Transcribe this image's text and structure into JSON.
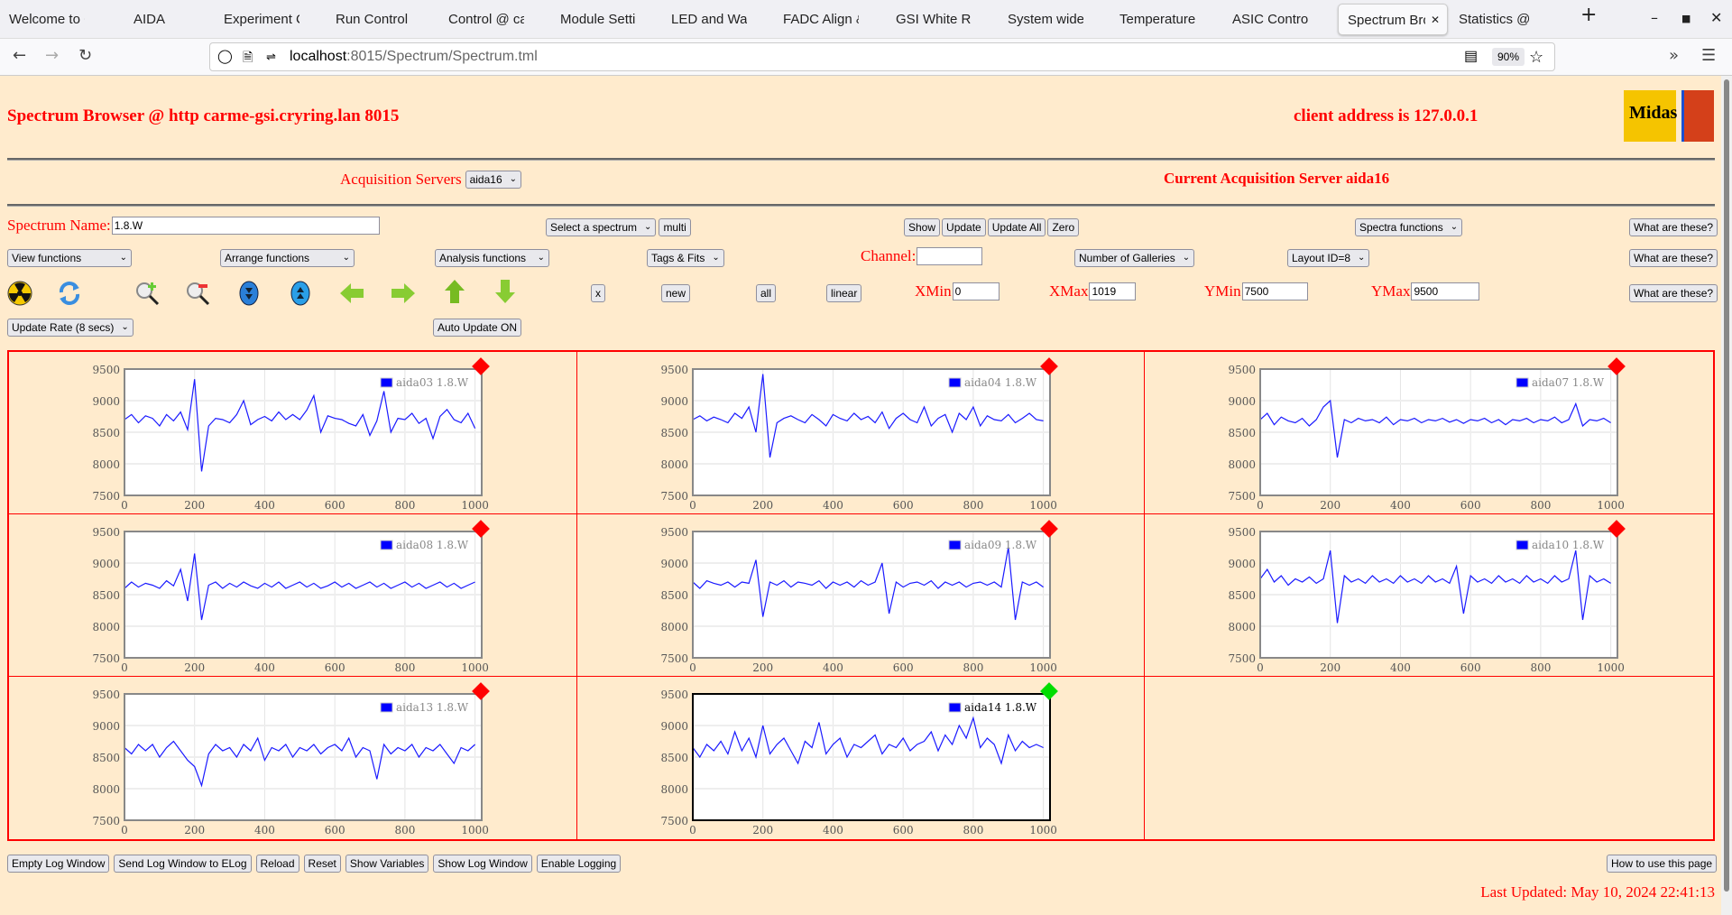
{
  "browser": {
    "tabs": [
      "Welcome to Cer",
      "AIDA",
      "Experiment Con",
      "Run Control @ c",
      "Control @ carm",
      "Module Settings",
      "LED and Wavefo",
      "FADC Align & C",
      "GSI White Rabbi",
      "System wide Ch",
      "Temperature an",
      "ASIC Control @",
      "Spectrum Bro",
      "Statistics @ car"
    ],
    "active_tab": 12,
    "new_tab": "+",
    "url_host": "localhost",
    "url_path": ":8015/Spectrum/Spectrum.tml",
    "zoom": "90%"
  },
  "header": {
    "title": "Spectrum Browser @ http carme-gsi.cryring.lan 8015",
    "client": "client address is 127.0.0.1",
    "acq_label": "Acquisition Servers",
    "acq_value": "aida16",
    "current_server": "Current Acquisition Server aida16"
  },
  "controls": {
    "spectrum_name_label": "Spectrum Name:",
    "spectrum_name_value": "1.8.W",
    "select_spectrum": "Select a spectrum",
    "multi": "multi",
    "show": "Show",
    "update": "Update",
    "update_all": "Update All",
    "zero": "Zero",
    "spectra_functions": "Spectra functions",
    "what": "What are these?",
    "view_functions": "View functions",
    "arrange_functions": "Arrange functions",
    "analysis_functions": "Analysis functions",
    "tags_fits": "Tags & Fits",
    "channel_label": "Channel:",
    "channel_value": "",
    "galleries": "Number of Galleries",
    "layout": "Layout ID=8",
    "x": "x",
    "new": "new",
    "all": "all",
    "linear": "linear",
    "xmin_label": "XMin",
    "xmin": "0",
    "xmax_label": "XMax",
    "xmax": "1019",
    "ymin_label": "YMin",
    "ymin": "7500",
    "ymax_label": "YMax",
    "ymax": "9500",
    "update_rate": "Update Rate (8 secs)",
    "auto_update": "Auto Update ON",
    "icons": [
      "radiation-icon",
      "refresh-icon",
      "zoom-in-icon",
      "zoom-out-icon",
      "expand-down-icon",
      "expand-up-icon",
      "arrow-left-icon",
      "arrow-right-icon",
      "arrow-up-icon",
      "arrow-down-icon"
    ]
  },
  "footer": {
    "buttons": [
      "Empty Log Window",
      "Send Log Window to ELog",
      "Reload",
      "Reset",
      "Show Variables",
      "Show Log Window",
      "Enable Logging"
    ],
    "help": "How to use this page",
    "last_updated": "Last Updated: May 10, 2024 22:41:13"
  },
  "chart_data": [
    {
      "type": "line",
      "legend": "aida03 1.8.W",
      "status_color": "#ff0000",
      "selected": false,
      "xlim": [
        0,
        1019
      ],
      "ylim": [
        7500,
        9500
      ],
      "xticks": [
        0,
        200,
        400,
        600,
        800,
        1000
      ],
      "yticks": [
        7500,
        8000,
        8500,
        9000,
        9500
      ],
      "x_start": 0,
      "x_step": 20,
      "values": [
        8700,
        8780,
        8650,
        8760,
        8720,
        8600,
        8780,
        8680,
        8820,
        8540,
        9340,
        7880,
        8600,
        8720,
        8700,
        8650,
        8780,
        9000,
        8620,
        8700,
        8750,
        8680,
        8820,
        8700,
        8780,
        8700,
        8850,
        9080,
        8500,
        8760,
        8720,
        8700,
        8640,
        8600,
        8780,
        8450,
        8680,
        9150,
        8500,
        8720,
        8700,
        8800,
        8640,
        8720,
        8400,
        8750,
        8860,
        8700,
        8650,
        8800,
        8560
      ]
    },
    {
      "type": "line",
      "legend": "aida04 1.8.W",
      "status_color": "#ff0000",
      "selected": false,
      "xlim": [
        0,
        1019
      ],
      "ylim": [
        7500,
        9500
      ],
      "xticks": [
        0,
        200,
        400,
        600,
        800,
        1000
      ],
      "yticks": [
        7500,
        8000,
        8500,
        9000,
        9500
      ],
      "x_start": 0,
      "x_step": 20,
      "values": [
        8700,
        8760,
        8680,
        8740,
        8700,
        8650,
        8800,
        8720,
        8900,
        8500,
        9420,
        8100,
        8650,
        8720,
        8760,
        8700,
        8650,
        8780,
        8700,
        8600,
        8780,
        8720,
        8680,
        8800,
        8700,
        8750,
        8650,
        8820,
        8560,
        8720,
        8800,
        8700,
        8650,
        8900,
        8600,
        8720,
        8780,
        8500,
        8800,
        8700,
        8900,
        8600,
        8760,
        8700,
        8680,
        8780,
        8650,
        8720,
        8800,
        8700,
        8680
      ]
    },
    {
      "type": "line",
      "legend": "aida07 1.8.W",
      "status_color": "#ff0000",
      "selected": false,
      "xlim": [
        0,
        1019
      ],
      "ylim": [
        7500,
        9500
      ],
      "xticks": [
        0,
        200,
        400,
        600,
        800,
        1000
      ],
      "yticks": [
        7500,
        8000,
        8500,
        9000,
        9500
      ],
      "x_start": 0,
      "x_step": 20,
      "values": [
        8700,
        8800,
        8620,
        8740,
        8680,
        8650,
        8720,
        8600,
        8700,
        8900,
        9000,
        8100,
        8700,
        8650,
        8720,
        8680,
        8700,
        8650,
        8740,
        8620,
        8700,
        8680,
        8720,
        8650,
        8700,
        8680,
        8720,
        8660,
        8700,
        8640,
        8700,
        8680,
        8720,
        8650,
        8700,
        8620,
        8700,
        8680,
        8720,
        8650,
        8700,
        8680,
        8740,
        8650,
        8700,
        8950,
        8600,
        8700,
        8680,
        8720,
        8650
      ]
    },
    {
      "type": "line",
      "legend": "aida08 1.8.W",
      "status_color": "#ff0000",
      "selected": false,
      "xlim": [
        0,
        1019
      ],
      "ylim": [
        7500,
        9500
      ],
      "xticks": [
        0,
        200,
        400,
        600,
        800,
        1000
      ],
      "yticks": [
        7500,
        8000,
        8500,
        9000,
        9500
      ],
      "x_start": 0,
      "x_step": 20,
      "values": [
        8600,
        8700,
        8620,
        8680,
        8650,
        8600,
        8720,
        8640,
        8900,
        8400,
        9150,
        8100,
        8650,
        8700,
        8600,
        8680,
        8620,
        8700,
        8640,
        8600,
        8680,
        8620,
        8700,
        8600,
        8650,
        8700,
        8620,
        8680,
        8600,
        8640,
        8700,
        8620,
        8680,
        8600,
        8650,
        8700,
        8620,
        8680,
        8600,
        8650,
        8700,
        8620,
        8680,
        8600,
        8650,
        8700,
        8620,
        8680,
        8600,
        8650,
        8700
      ]
    },
    {
      "type": "line",
      "legend": "aida09 1.8.W",
      "status_color": "#ff0000",
      "selected": false,
      "xlim": [
        0,
        1019
      ],
      "ylim": [
        7500,
        9500
      ],
      "xticks": [
        0,
        200,
        400,
        600,
        800,
        1000
      ],
      "yticks": [
        7500,
        8000,
        8500,
        9000,
        9500
      ],
      "x_start": 0,
      "x_step": 20,
      "values": [
        8700,
        8600,
        8720,
        8680,
        8650,
        8700,
        8620,
        8700,
        8680,
        9050,
        8150,
        8700,
        8650,
        8720,
        8620,
        8700,
        8680,
        8650,
        8720,
        8600,
        8700,
        8650,
        8700,
        8620,
        8720,
        8650,
        8700,
        9000,
        8200,
        8700,
        8620,
        8680,
        8700,
        8650,
        8720,
        8600,
        8700,
        8650,
        8700,
        8620,
        8680,
        8700,
        8650,
        8700,
        8620,
        9250,
        8100,
        8700,
        8650,
        8700,
        8620
      ]
    },
    {
      "type": "line",
      "legend": "aida10 1.8.W",
      "status_color": "#ff0000",
      "selected": false,
      "xlim": [
        0,
        1019
      ],
      "ylim": [
        7500,
        9500
      ],
      "xticks": [
        0,
        200,
        400,
        600,
        800,
        1000
      ],
      "yticks": [
        7500,
        8000,
        8500,
        9000,
        9500
      ],
      "x_start": 0,
      "x_step": 20,
      "values": [
        8750,
        8900,
        8700,
        8800,
        8650,
        8750,
        8700,
        8780,
        8680,
        8750,
        9200,
        8050,
        8800,
        8700,
        8750,
        8680,
        8800,
        8700,
        8750,
        8680,
        8800,
        8700,
        8750,
        8680,
        8800,
        8700,
        8750,
        8680,
        8950,
        8200,
        8800,
        8700,
        8750,
        8680,
        8800,
        8700,
        8750,
        8680,
        8800,
        8700,
        8750,
        8680,
        8800,
        8700,
        8750,
        9200,
        8100,
        8800,
        8700,
        8750,
        8680
      ]
    },
    {
      "type": "line",
      "legend": "aida13 1.8.W",
      "status_color": "#ff0000",
      "selected": false,
      "xlim": [
        0,
        1019
      ],
      "ylim": [
        7500,
        9500
      ],
      "xticks": [
        0,
        200,
        400,
        600,
        800,
        1000
      ],
      "yticks": [
        7500,
        8000,
        8500,
        9000,
        9500
      ],
      "x_start": 0,
      "x_step": 20,
      "values": [
        8650,
        8550,
        8700,
        8600,
        8700,
        8500,
        8650,
        8750,
        8600,
        8450,
        8350,
        8050,
        8550,
        8700,
        8600,
        8650,
        8500,
        8700,
        8600,
        8800,
        8450,
        8650,
        8600,
        8700,
        8500,
        8650,
        8600,
        8700,
        8550,
        8650,
        8700,
        8600,
        8800,
        8500,
        8650,
        8600,
        8150,
        8700,
        8550,
        8650,
        8600,
        8700,
        8500,
        8650,
        8600,
        8700,
        8550,
        8400,
        8650,
        8600,
        8700
      ]
    },
    {
      "type": "line",
      "legend": "aida14 1.8.W",
      "status_color": "#00dd00",
      "selected": true,
      "xlim": [
        0,
        1019
      ],
      "ylim": [
        7500,
        9500
      ],
      "xticks": [
        0,
        200,
        400,
        600,
        800,
        1000
      ],
      "yticks": [
        7500,
        8000,
        8500,
        9000,
        9500
      ],
      "x_start": 0,
      "x_step": 20,
      "values": [
        8650,
        8500,
        8700,
        8600,
        8750,
        8550,
        8900,
        8600,
        8800,
        8500,
        9000,
        8550,
        8700,
        8800,
        8600,
        8400,
        8750,
        8650,
        9050,
        8550,
        8700,
        8800,
        8500,
        8700,
        8650,
        8750,
        8850,
        8550,
        8700,
        8650,
        8800,
        8600,
        8700,
        8750,
        8900,
        8600,
        8850,
        8700,
        9000,
        8800,
        9120,
        8650,
        8800,
        8700,
        8400,
        8850,
        8600,
        8750,
        8650,
        8700,
        8650
      ]
    }
  ]
}
